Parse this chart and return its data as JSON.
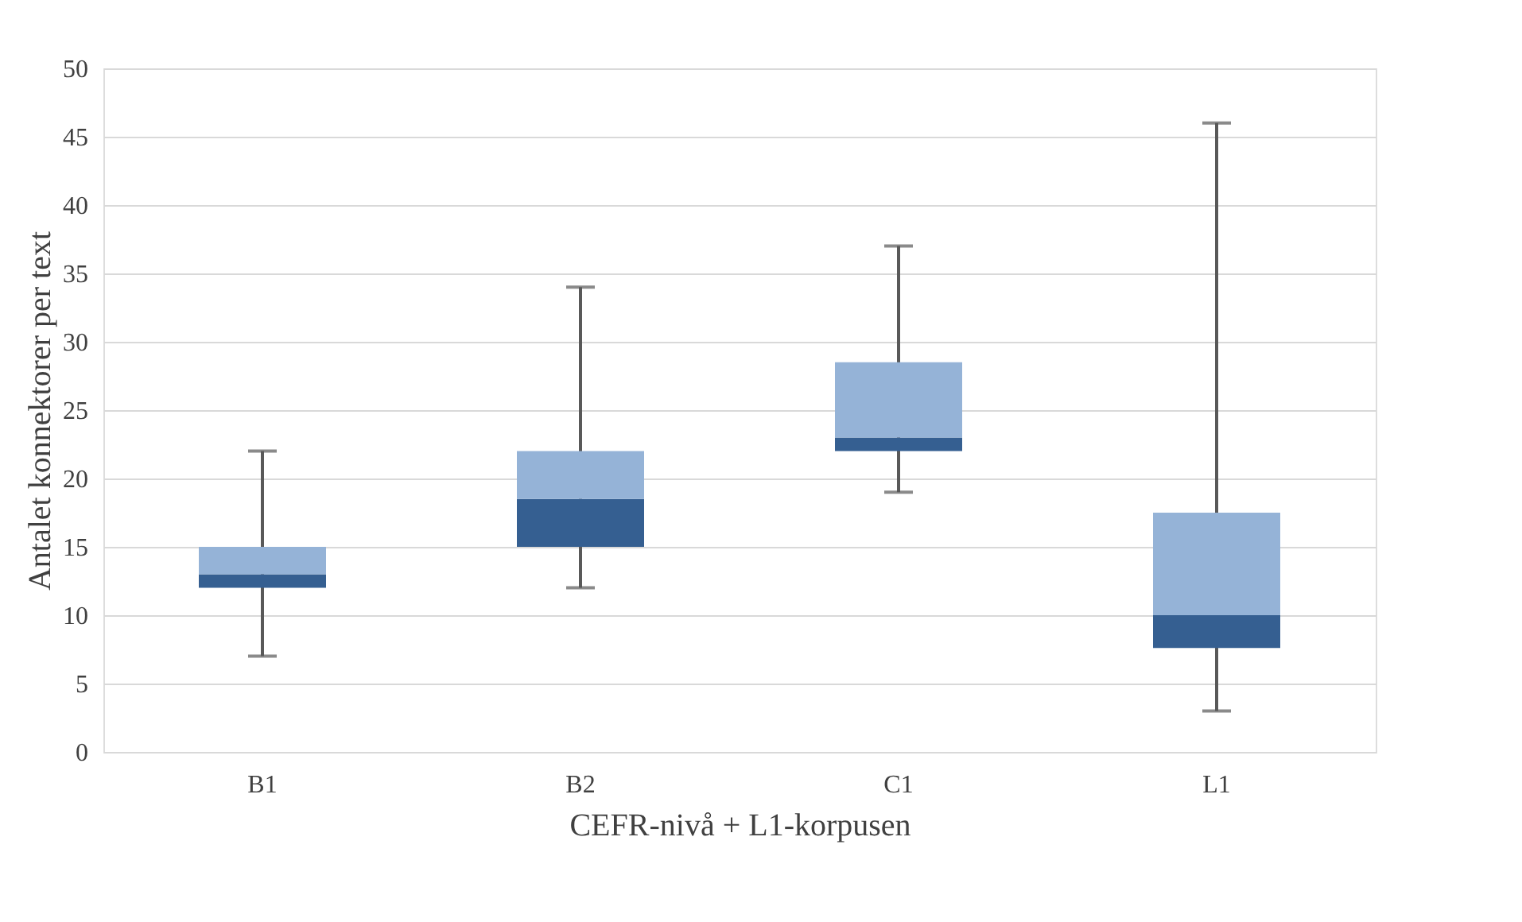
{
  "chart_data": {
    "type": "box",
    "xlabel": "CEFR-nivå + L1-korpusen",
    "ylabel": "Antalet konnektorer per text",
    "categories": [
      "B1",
      "B2",
      "C1",
      "L1"
    ],
    "color": "#95b3d7",
    "series": [
      {
        "color": "#355f91",
        "boxes": [
          {
            "low": 7,
            "q1": 12,
            "median": 13,
            "q3": 15,
            "high": 22
          },
          {
            "low": 12,
            "q1": 15,
            "median": 18.5,
            "q3": 22,
            "high": 34
          },
          {
            "low": 19,
            "q1": 22,
            "median": 23,
            "q3": 28.5,
            "high": 37
          },
          {
            "low": 3,
            "q1": 7.6,
            "median": 10,
            "q3": 17.5,
            "high": 46
          }
        ]
      }
    ],
    "ylim": [
      0,
      50
    ],
    "yticks": [
      0,
      5,
      10,
      15,
      20,
      25,
      30,
      35,
      40,
      45,
      50
    ],
    "grid": "y"
  }
}
